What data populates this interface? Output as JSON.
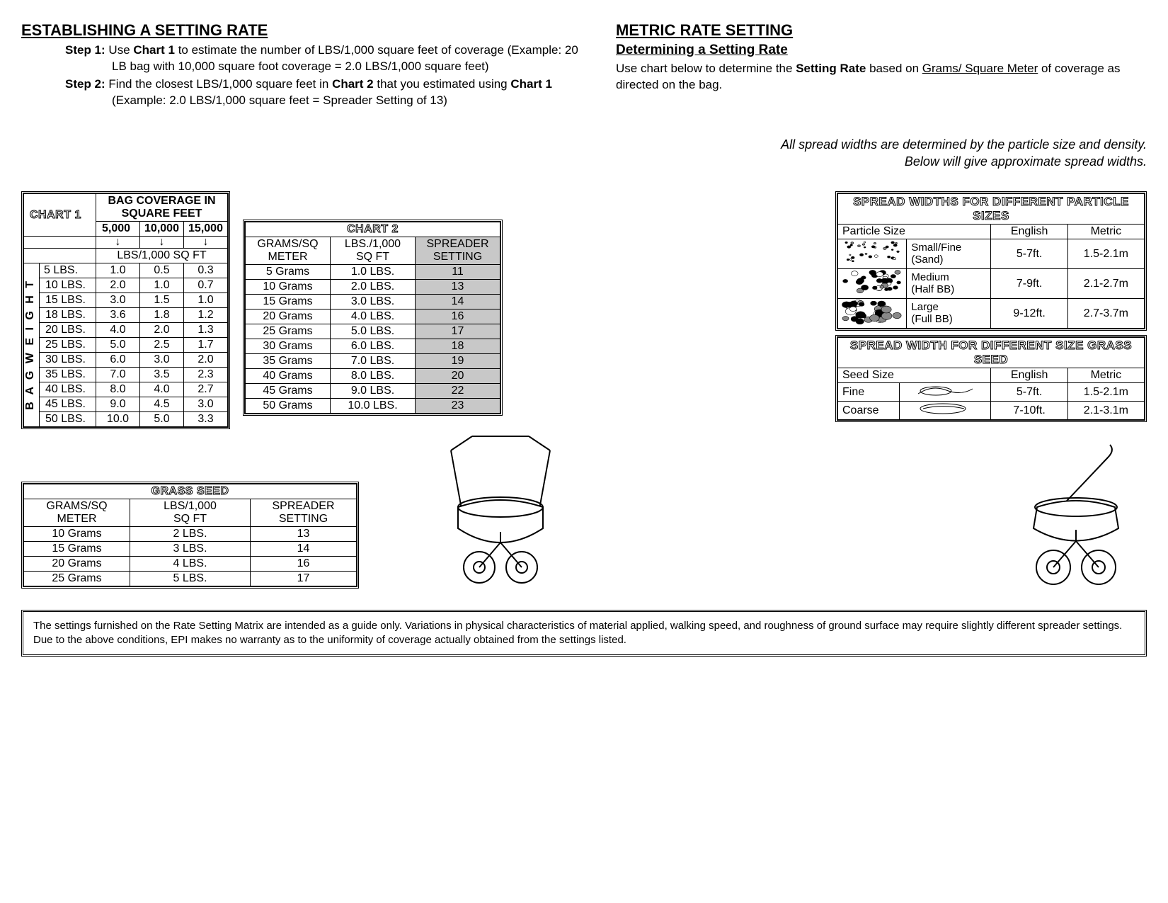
{
  "left": {
    "title": "ESTABLISHING A SETTING RATE",
    "step1_label": "Step 1:",
    "step1_text_a": "Use ",
    "step1_bold_a": "Chart 1",
    "step1_text_b": " to estimate the number of LBS/1,000 square feet of coverage (Example: 20 LB bag with 10,000 square foot coverage = 2.0 LBS/1,000 square feet)",
    "step2_label": "Step 2:",
    "step2_text_a": "Find the closest LBS/1,000 square feet in ",
    "step2_bold_a": "Chart 2",
    "step2_text_b": " that you estimated using ",
    "step2_bold_b": "Chart 1",
    "step2_text_c": " (Example: 2.0 LBS/1,000 square feet = Spreader Setting of 13)"
  },
  "right": {
    "title": "METRIC RATE SETTING",
    "subtitle": "Determining a Setting Rate",
    "text_a": "Use chart below to determine the ",
    "bold_a": "Setting Rate",
    "text_b": " based on ",
    "u_a": "Grams/ Square Meter",
    "text_c": " of coverage as directed on the bag.",
    "italic_a": "All spread widths are determined by the particle size and density.",
    "italic_b": "Below will give approximate spread widths."
  },
  "chart1": {
    "title": "CHART 1",
    "header_top": "BAG COVERAGE IN SQUARE FEET",
    "cols": [
      "5,000",
      "10,000",
      "15,000"
    ],
    "subhead": "LBS/1,000 SQ FT",
    "side_label": "BAG WEIGHT",
    "rows": [
      {
        "w": "5 LBS.",
        "v": [
          "1.0",
          "0.5",
          "0.3"
        ]
      },
      {
        "w": "10 LBS.",
        "v": [
          "2.0",
          "1.0",
          "0.7"
        ]
      },
      {
        "w": "15 LBS.",
        "v": [
          "3.0",
          "1.5",
          "1.0"
        ]
      },
      {
        "w": "18 LBS.",
        "v": [
          "3.6",
          "1.8",
          "1.2"
        ]
      },
      {
        "w": "20 LBS.",
        "v": [
          "4.0",
          "2.0",
          "1.3"
        ]
      },
      {
        "w": "25 LBS.",
        "v": [
          "5.0",
          "2.5",
          "1.7"
        ]
      },
      {
        "w": "30 LBS.",
        "v": [
          "6.0",
          "3.0",
          "2.0"
        ]
      },
      {
        "w": "35 LBS.",
        "v": [
          "7.0",
          "3.5",
          "2.3"
        ]
      },
      {
        "w": "40 LBS.",
        "v": [
          "8.0",
          "4.0",
          "2.7"
        ]
      },
      {
        "w": "45 LBS.",
        "v": [
          "9.0",
          "4.5",
          "3.0"
        ]
      },
      {
        "w": "50 LBS.",
        "v": [
          "10.0",
          "5.0",
          "3.3"
        ]
      }
    ]
  },
  "chart2": {
    "title": "CHART 2",
    "headers": [
      "GRAMS/SQ METER",
      "LBS./1,000 SQ FT",
      "SPREADER SETTING"
    ],
    "rows": [
      [
        "5 Grams",
        "1.0 LBS.",
        "11"
      ],
      [
        "10 Grams",
        "2.0 LBS.",
        "13"
      ],
      [
        "15 Grams",
        "3.0 LBS.",
        "14"
      ],
      [
        "20 Grams",
        "4.0 LBS.",
        "16"
      ],
      [
        "25 Grams",
        "5.0 LBS.",
        "17"
      ],
      [
        "30 Grams",
        "6.0 LBS.",
        "18"
      ],
      [
        "35 Grams",
        "7.0 LBS.",
        "19"
      ],
      [
        "40 Grams",
        "8.0 LBS.",
        "20"
      ],
      [
        "45 Grams",
        "9.0 LBS.",
        "22"
      ],
      [
        "50 Grams",
        "10.0 LBS.",
        "23"
      ]
    ]
  },
  "grass": {
    "title": "GRASS SEED",
    "headers": [
      "GRAMS/SQ METER",
      "LBS/1,000 SQ FT",
      "SPREADER SETTING"
    ],
    "rows": [
      [
        "10 Grams",
        "2 LBS.",
        "13"
      ],
      [
        "15 Grams",
        "3 LBS.",
        "14"
      ],
      [
        "20 Grams",
        "4 LBS.",
        "16"
      ],
      [
        "25 Grams",
        "5 LBS.",
        "17"
      ]
    ]
  },
  "spread1": {
    "title": "SPREAD WIDTHS FOR DIFFERENT PARTICLE SIZES",
    "headers": [
      "Particle Size",
      "English",
      "Metric"
    ],
    "rows": [
      {
        "label": "Small/Fine (Sand)",
        "eng": "5-7ft.",
        "met": "1.5-2.1m"
      },
      {
        "label": "Medium (Half BB)",
        "eng": "7-9ft.",
        "met": "2.1-2.7m"
      },
      {
        "label": "Large (Full BB)",
        "eng": "9-12ft.",
        "met": "2.7-3.7m"
      }
    ]
  },
  "spread2": {
    "title": "SPREAD WIDTH FOR DIFFERENT SIZE GRASS SEED",
    "headers": [
      "Seed Size",
      "English",
      "Metric"
    ],
    "rows": [
      {
        "label": "Fine",
        "eng": "5-7ft.",
        "met": "1.5-2.1m"
      },
      {
        "label": "Coarse",
        "eng": "7-10ft.",
        "met": "2.1-3.1m"
      }
    ]
  },
  "disclaimer": "The settings furnished on the Rate Setting Matrix are intended as a guide only.  Variations in physical characteristics of material applied, walking speed, and roughness of ground surface may require slightly different spreader settings. Due to the above conditions, EPI makes no warranty as to the uniformity of coverage actually obtained from the settings listed."
}
